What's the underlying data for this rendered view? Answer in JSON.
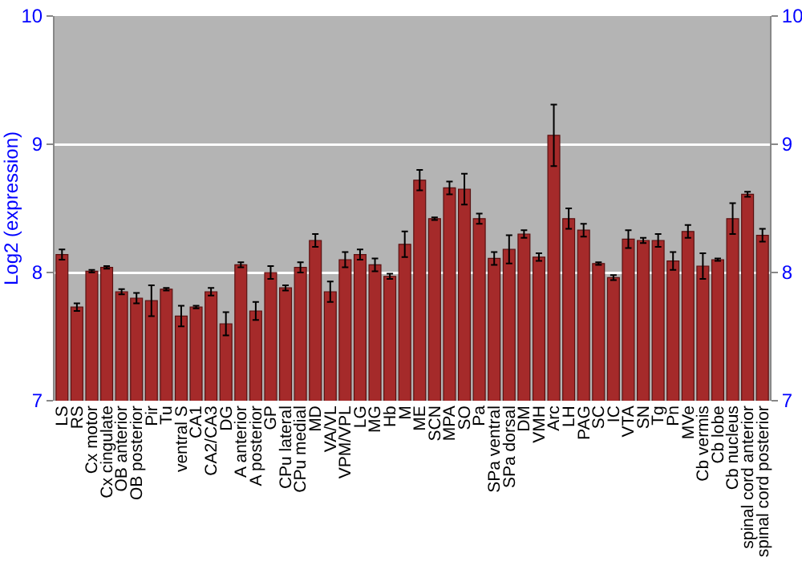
{
  "chart_data": {
    "type": "bar",
    "ylabel": "Log2 (expression)",
    "categories": [
      "LS",
      "RS",
      "Cx motor",
      "Cx cingulate",
      "OB anterior",
      "OB posterior",
      "Pir",
      "Tu",
      "ventral S",
      "CA1",
      "CA2/CA3",
      "DG",
      "A anterior",
      "A posterior",
      "GP",
      "CPu lateral",
      "CPu medial",
      "MD",
      "VA/VL",
      "VPM/VPL",
      "LG",
      "MG",
      "Hb",
      "M",
      "ME",
      "SCN",
      "MPA",
      "SO",
      "Pa",
      "SPa ventral",
      "SPa dorsal",
      "DM",
      "VMH",
      "Arc",
      "LH",
      "PAG",
      "SC",
      "IC",
      "VTA",
      "SN",
      "Tg",
      "Pn",
      "MVe",
      "Cb vermis",
      "Cb lobe",
      "Cb nucleus",
      "spinal cord anterior",
      "spinal cord posterior"
    ],
    "values": [
      8.14,
      7.73,
      8.01,
      8.04,
      7.85,
      7.8,
      7.78,
      7.87,
      7.66,
      7.73,
      7.85,
      7.6,
      8.06,
      7.7,
      8.0,
      7.88,
      8.04,
      8.25,
      7.85,
      8.1,
      8.14,
      8.06,
      7.97,
      8.22,
      8.72,
      8.42,
      8.66,
      8.65,
      8.42,
      8.11,
      8.18,
      8.3,
      8.12,
      9.07,
      8.42,
      8.33,
      8.07,
      7.96,
      8.26,
      8.25,
      8.25,
      8.09,
      8.32,
      8.05,
      8.1,
      8.42,
      8.61,
      8.29
    ],
    "errors": [
      0.04,
      0.03,
      0.01,
      0.01,
      0.02,
      0.04,
      0.12,
      0.01,
      0.08,
      0.01,
      0.03,
      0.09,
      0.02,
      0.07,
      0.05,
      0.02,
      0.04,
      0.05,
      0.08,
      0.06,
      0.04,
      0.05,
      0.02,
      0.1,
      0.08,
      0.01,
      0.05,
      0.12,
      0.04,
      0.05,
      0.11,
      0.03,
      0.03,
      0.24,
      0.08,
      0.05,
      0.01,
      0.02,
      0.07,
      0.02,
      0.05,
      0.07,
      0.05,
      0.1,
      0.01,
      0.12,
      0.02,
      0.05
    ],
    "color": "#a52a2a",
    "ylim": [
      7,
      10
    ],
    "yticks": [
      7,
      8,
      9,
      10
    ],
    "y2lim": [
      7,
      10
    ],
    "y2ticks": [
      7,
      8,
      9,
      10
    ],
    "grid": "y"
  }
}
